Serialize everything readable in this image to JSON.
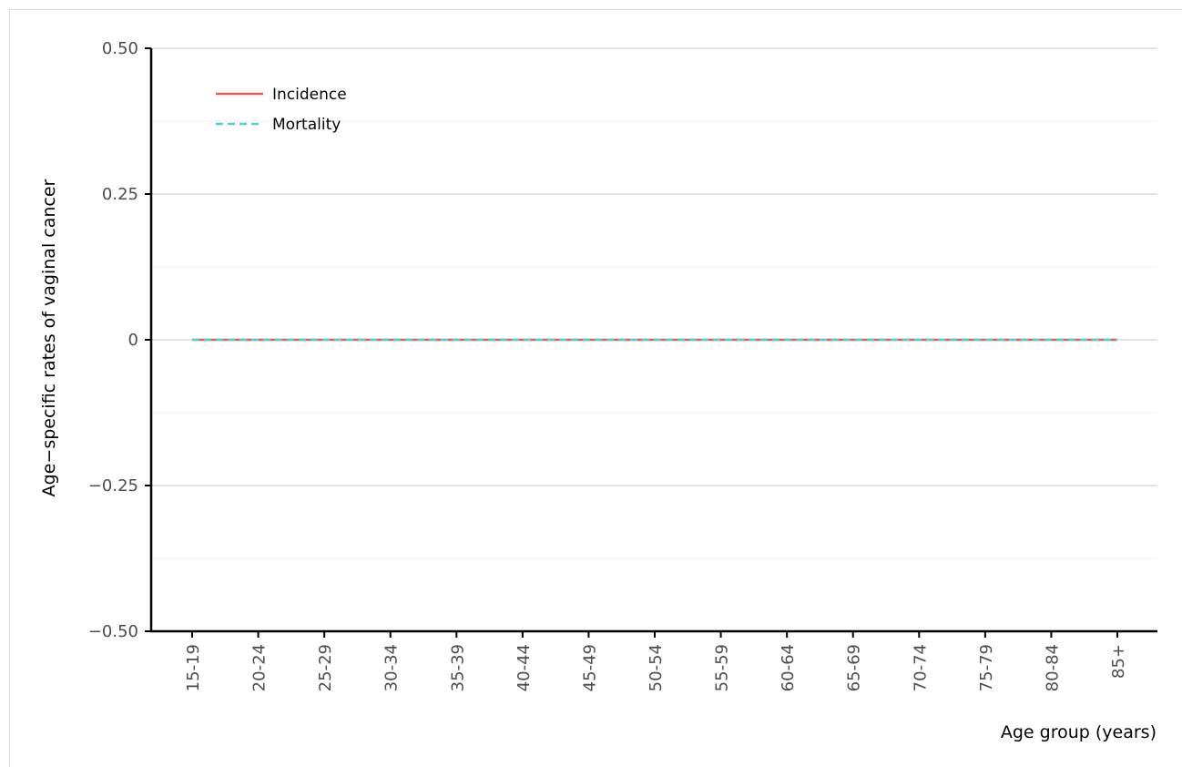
{
  "chart_data": {
    "type": "line",
    "title": "",
    "xlabel": "Age group (years)",
    "ylabel": "Age−specific rates of vaginal cancer",
    "categories": [
      "15-19",
      "20-24",
      "25-29",
      "30-34",
      "35-39",
      "40-44",
      "45-49",
      "50-54",
      "55-59",
      "60-64",
      "65-69",
      "70-74",
      "75-79",
      "80-84",
      "85+"
    ],
    "ylim": [
      -0.5,
      0.5
    ],
    "yticks": [
      {
        "value": 0.5,
        "label": "0.50"
      },
      {
        "value": 0.25,
        "label": "0.25"
      },
      {
        "value": 0,
        "label": "0"
      },
      {
        "value": -0.25,
        "label": "−0.25"
      },
      {
        "value": -0.5,
        "label": "−0.50"
      }
    ],
    "grid": true,
    "legend_position": "top-left",
    "series": [
      {
        "name": "Incidence",
        "color": "#e06055",
        "dash": "solid",
        "values": [
          0,
          0,
          0,
          0,
          0,
          0,
          0,
          0,
          0,
          0,
          0,
          0,
          0,
          0,
          0
        ]
      },
      {
        "name": "Mortality",
        "color": "#4fd0d8",
        "dash": "dashed",
        "values": [
          0,
          0,
          0,
          0,
          0,
          0,
          0,
          0,
          0,
          0,
          0,
          0,
          0,
          0,
          0
        ]
      }
    ]
  }
}
